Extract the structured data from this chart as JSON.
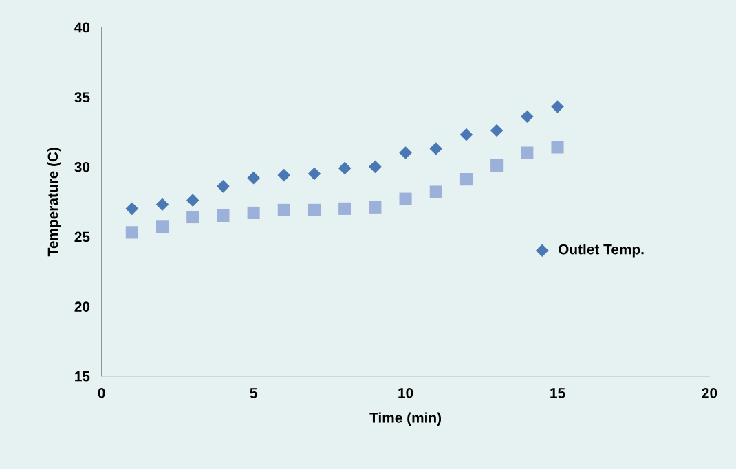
{
  "chart_data": {
    "type": "scatter",
    "xlabel": "Time (min)",
    "ylabel": "Temperature (C)",
    "xlim": [
      0,
      20
    ],
    "xticks": [
      0,
      5,
      10,
      15,
      20
    ],
    "ylim": [
      15,
      40
    ],
    "yticks": [
      15,
      20,
      25,
      30,
      35,
      40
    ],
    "x": [
      1,
      2,
      3,
      4,
      5,
      6,
      7,
      8,
      9,
      10,
      11,
      12,
      13,
      14,
      15
    ],
    "series": [
      {
        "name": "Outlet Temp.",
        "color": "#4a78b4",
        "marker": "diamond",
        "values": [
          27.0,
          27.3,
          27.6,
          28.6,
          29.2,
          29.4,
          29.5,
          29.9,
          30.0,
          31.0,
          31.3,
          32.3,
          32.6,
          33.6,
          34.3
        ]
      },
      {
        "color": "#9bb1d9",
        "marker": "square",
        "values": [
          25.3,
          25.7,
          26.4,
          26.5,
          26.7,
          26.9,
          26.9,
          27.0,
          27.1,
          27.7,
          28.2,
          29.1,
          30.1,
          31.0,
          31.4
        ]
      }
    ],
    "grid": false,
    "legend": "right"
  }
}
